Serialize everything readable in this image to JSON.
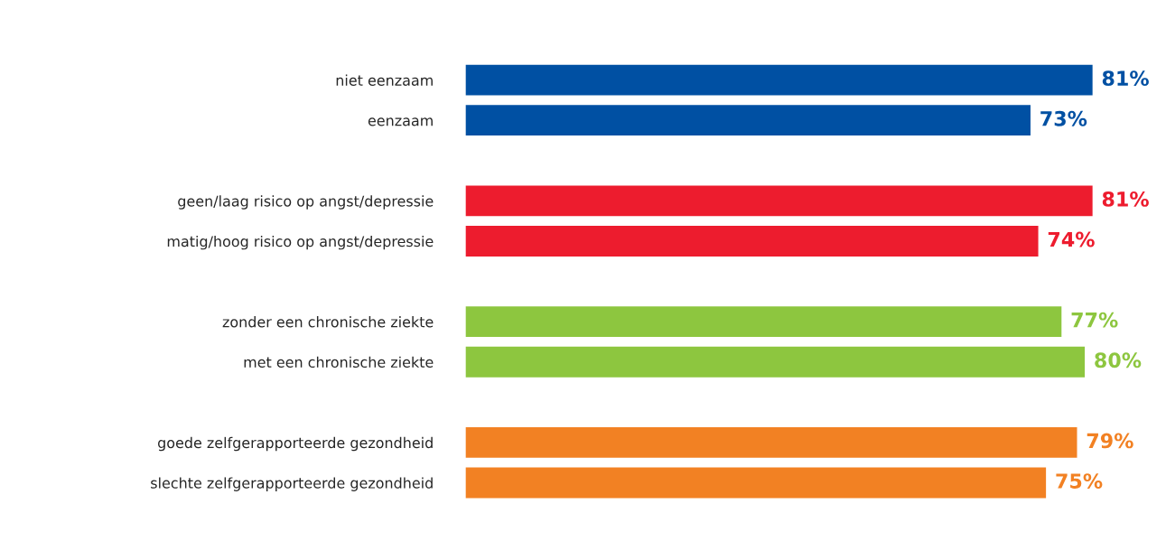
{
  "chart_data": {
    "type": "bar",
    "orientation": "horizontal",
    "categories": [
      "niet eenzaam",
      "eenzaam",
      null,
      "geen/laag risico op angst/depressie",
      "matig/hoog risico op angst/depressie",
      null,
      "zonder een chronische ziekte",
      "met een chronische ziekte",
      null,
      "goede zelfgerapporteerde gezondheid",
      "slechte zelfgerapporteerde gezondheid"
    ],
    "values": [
      81,
      73,
      null,
      81,
      74,
      null,
      77,
      80,
      null,
      79,
      75
    ],
    "value_labels": [
      "81%",
      "73%",
      null,
      "81%",
      "74%",
      null,
      "77%",
      "80%",
      null,
      "79%",
      "75%"
    ],
    "colors": [
      "#0050a3",
      "#0050a3",
      null,
      "#ed1c2e",
      "#ed1c2e",
      null,
      "#8dc63f",
      "#8dc63f",
      null,
      "#f28123",
      "#f28123"
    ],
    "tick_labels": "y",
    "grid": false
  }
}
